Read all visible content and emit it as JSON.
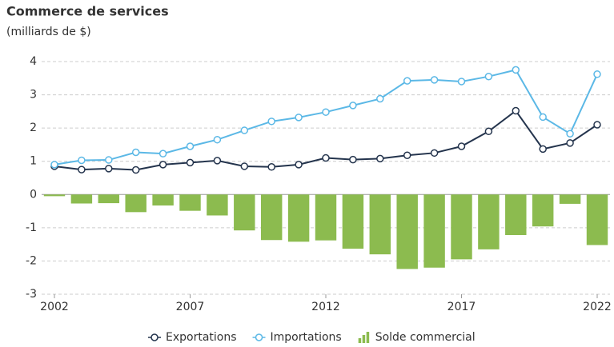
{
  "chart_data": {
    "type": "combo",
    "title": "Commerce de services",
    "subtitle": "(milliards de $)",
    "x": [
      2002,
      2003,
      2004,
      2005,
      2006,
      2007,
      2008,
      2009,
      2010,
      2011,
      2012,
      2013,
      2014,
      2015,
      2016,
      2017,
      2018,
      2019,
      2020,
      2021,
      2022
    ],
    "xlim": [
      2002,
      2022
    ],
    "xticks": [
      2002,
      2007,
      2012,
      2017,
      2022
    ],
    "ylim": [
      -3,
      4
    ],
    "yticks": [
      -3,
      -2,
      -1,
      0,
      1,
      2,
      3,
      4
    ],
    "grid": true,
    "legend": "bottom",
    "series": [
      {
        "name": "Exportations",
        "type": "line",
        "color": "#24344d",
        "values": [
          0.85,
          0.75,
          0.78,
          0.74,
          0.9,
          0.96,
          1.02,
          0.85,
          0.83,
          0.9,
          1.1,
          1.05,
          1.08,
          1.18,
          1.25,
          1.45,
          1.9,
          2.52,
          1.37,
          1.55,
          2.1
        ]
      },
      {
        "name": "Importations",
        "type": "line",
        "color": "#5bb8e6",
        "values": [
          0.9,
          1.03,
          1.04,
          1.27,
          1.23,
          1.45,
          1.65,
          1.93,
          2.2,
          2.32,
          2.48,
          2.68,
          2.88,
          3.42,
          3.45,
          3.4,
          3.55,
          3.75,
          2.33,
          1.83,
          3.62
        ]
      },
      {
        "name": "Solde commercial",
        "type": "bar",
        "color": "#8cbb4f",
        "values": [
          -0.05,
          -0.27,
          -0.26,
          -0.53,
          -0.33,
          -0.49,
          -0.63,
          -1.08,
          -1.37,
          -1.42,
          -1.38,
          -1.63,
          -1.8,
          -2.24,
          -2.2,
          -1.95,
          -1.65,
          -1.22,
          -0.96,
          -0.28,
          -1.52
        ]
      }
    ]
  }
}
